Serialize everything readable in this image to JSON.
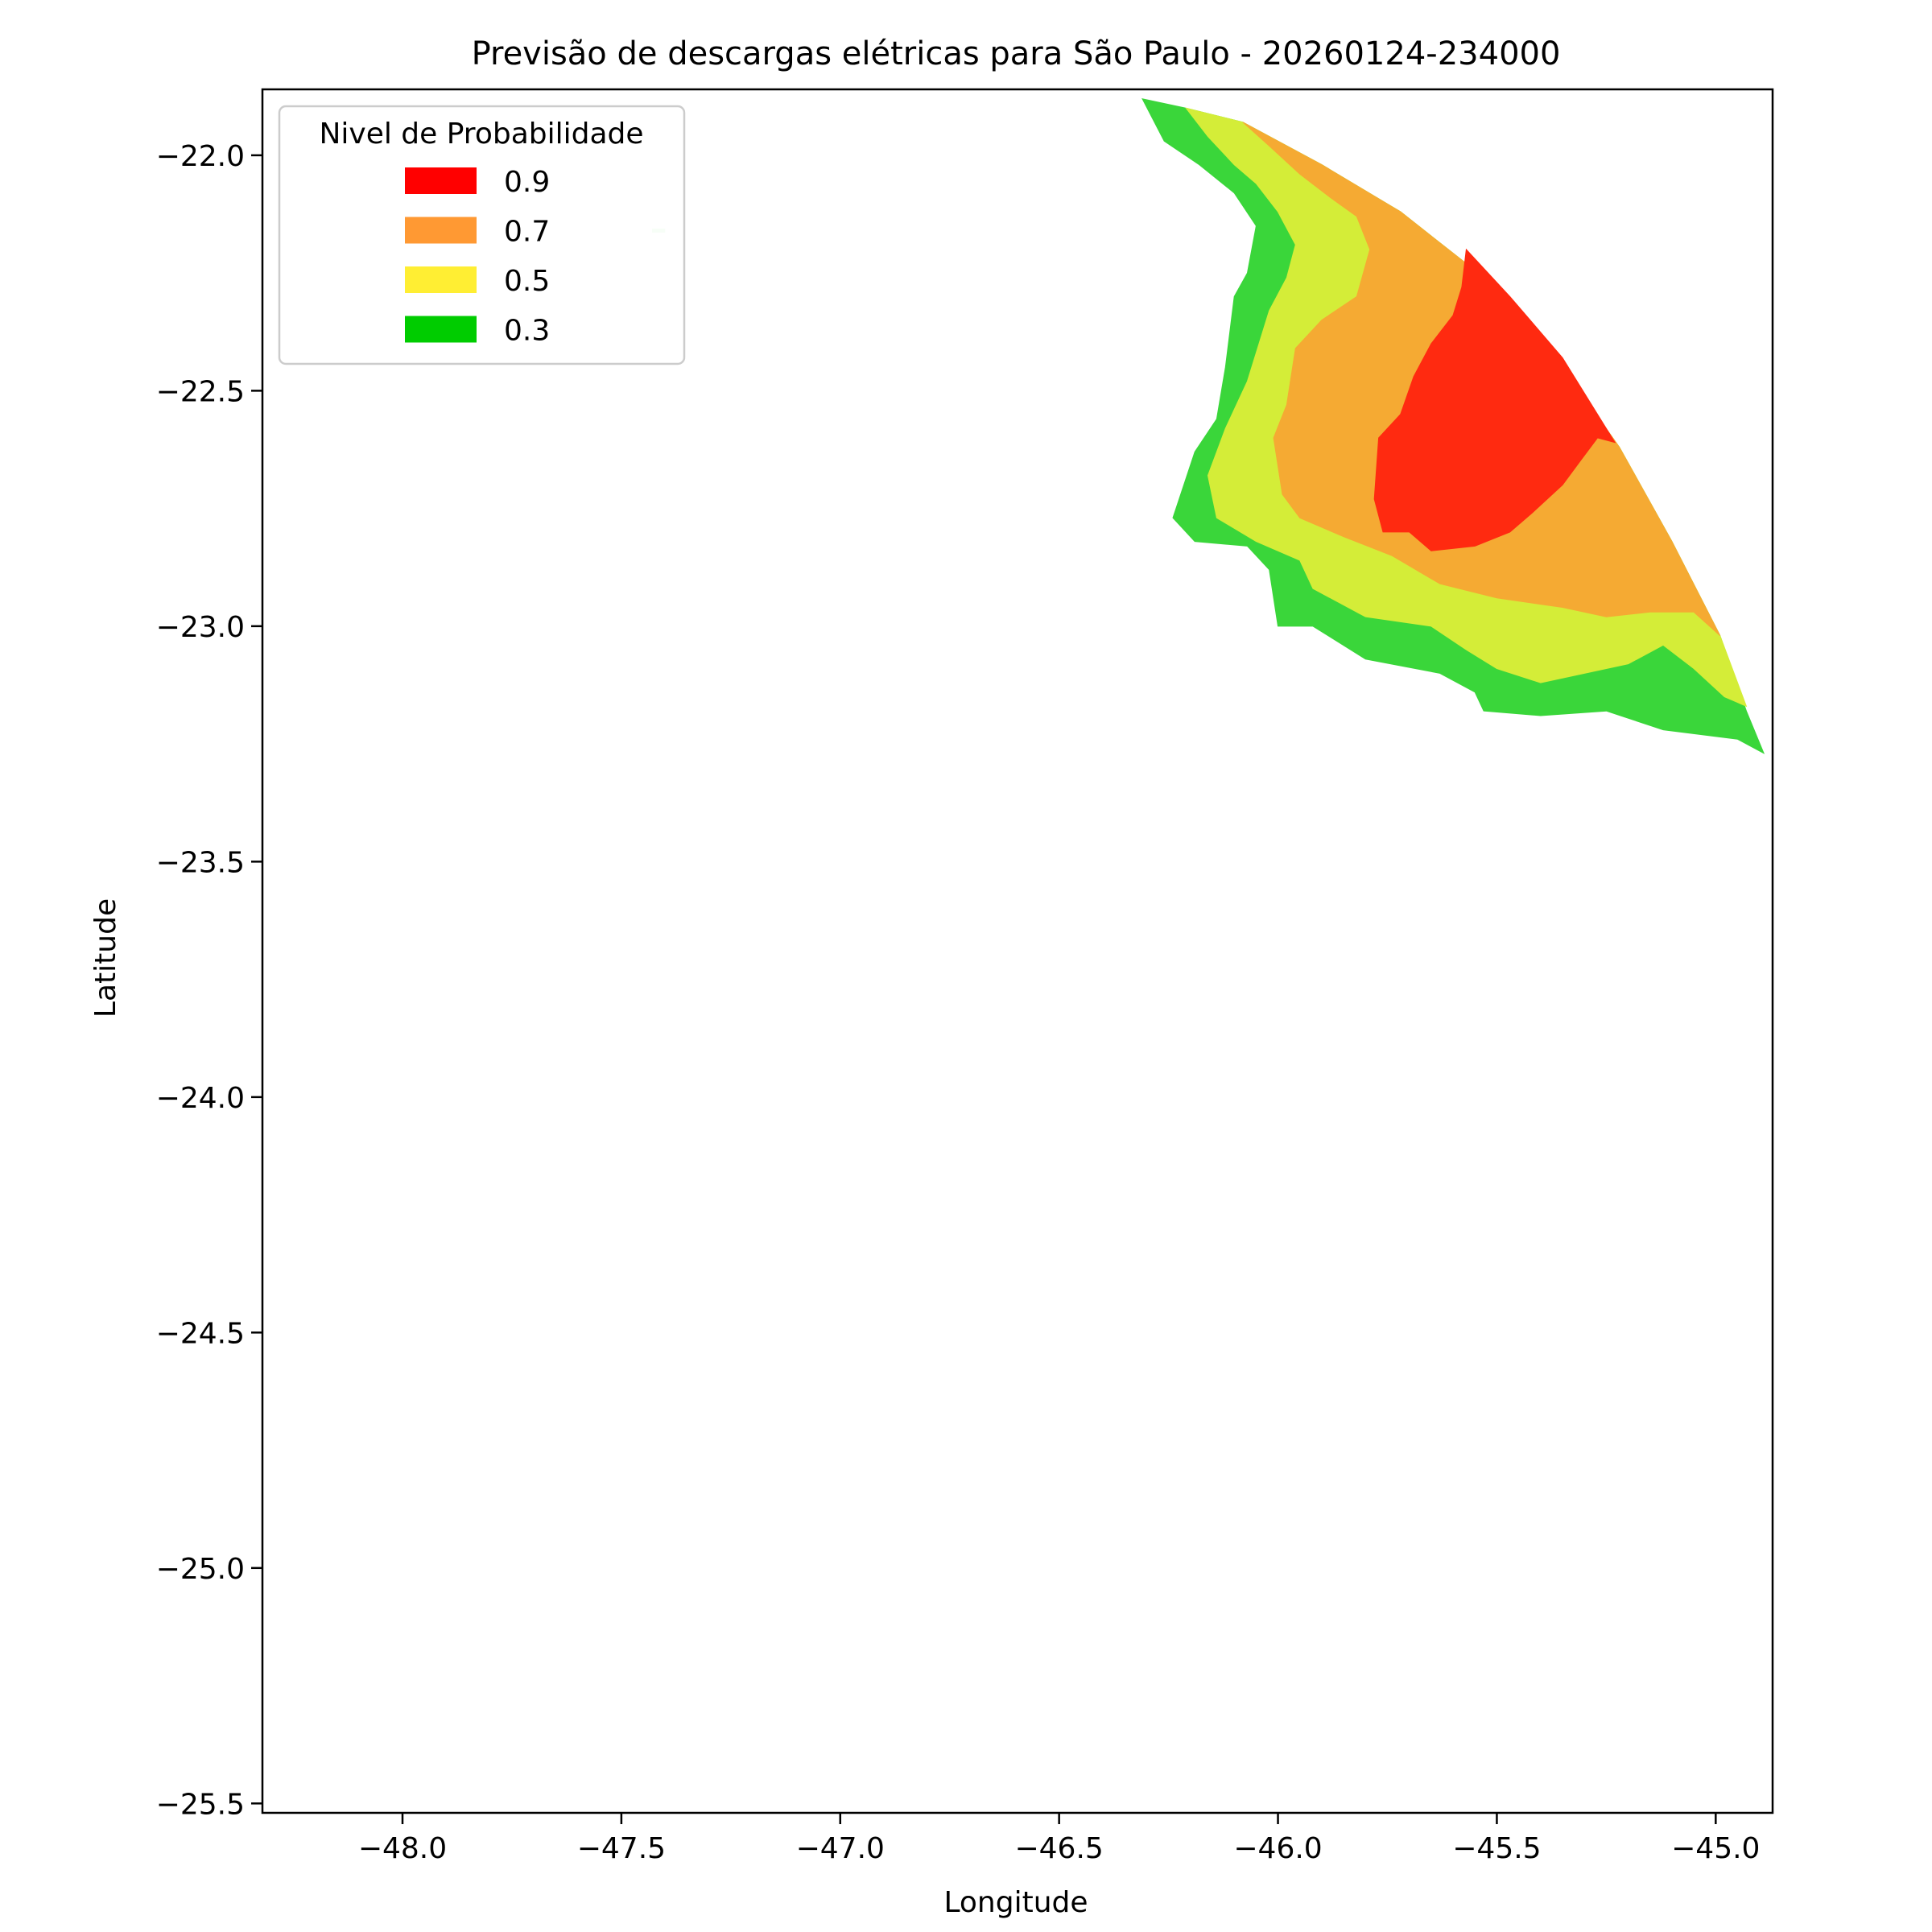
{
  "chart_data": {
    "type": "contour",
    "title": "Previsão de descargas elétricas para São Paulo - 20260124-234000",
    "xlabel": "Longitude",
    "ylabel": "Latitude",
    "xlim": [
      -48.32,
      -44.87
    ],
    "ylim": [
      -25.52,
      -21.86
    ],
    "xticks": [
      -48.0,
      -47.5,
      -47.0,
      -46.5,
      -46.0,
      -45.5,
      -45.0
    ],
    "xtick_labels": [
      "−48.0",
      "−47.5",
      "−47.0",
      "−46.5",
      "−46.0",
      "−45.5",
      "−45.0"
    ],
    "yticks": [
      -22.0,
      -22.5,
      -23.0,
      -23.5,
      -24.0,
      -24.5,
      -25.0,
      -25.5
    ],
    "ytick_labels": [
      "−22.0",
      "−22.5",
      "−23.0",
      "−23.5",
      "−24.0",
      "−24.5",
      "−25.0",
      "−25.5"
    ],
    "legend": {
      "title": "Nivel de Probabilidade",
      "position": "upper-left",
      "entries": [
        {
          "label": "0.9",
          "color": "#ff0000"
        },
        {
          "label": "0.7",
          "color": "#ff9933"
        },
        {
          "label": "0.5",
          "color": "#ffee33"
        },
        {
          "label": "0.3",
          "color": "#00cc00"
        }
      ]
    },
    "regions": [
      {
        "level": "0.3",
        "color": "#3ad63a",
        "points": [
          [
            -46.31,
            -21.88
          ],
          [
            -46.21,
            -21.9
          ],
          [
            -46.08,
            -21.93
          ],
          [
            -45.9,
            -22.02
          ],
          [
            -45.72,
            -22.12
          ],
          [
            -45.57,
            -22.23
          ],
          [
            -45.47,
            -22.32
          ],
          [
            -45.35,
            -22.45
          ],
          [
            -45.22,
            -22.62
          ],
          [
            -45.1,
            -22.82
          ],
          [
            -44.99,
            -23.02
          ],
          [
            -44.93,
            -23.18
          ],
          [
            -44.89,
            -23.27
          ],
          [
            -44.95,
            -23.24
          ],
          [
            -45.12,
            -23.22
          ],
          [
            -45.25,
            -23.18
          ],
          [
            -45.4,
            -23.19
          ],
          [
            -45.53,
            -23.18
          ],
          [
            -45.55,
            -23.14
          ],
          [
            -45.63,
            -23.1
          ],
          [
            -45.8,
            -23.07
          ],
          [
            -45.92,
            -23.0
          ],
          [
            -46.0,
            -23.0
          ],
          [
            -46.02,
            -22.88
          ],
          [
            -46.07,
            -22.83
          ],
          [
            -46.19,
            -22.82
          ],
          [
            -46.24,
            -22.77
          ],
          [
            -46.19,
            -22.63
          ],
          [
            -46.14,
            -22.56
          ],
          [
            -46.12,
            -22.45
          ],
          [
            -46.1,
            -22.3
          ],
          [
            -46.07,
            -22.25
          ],
          [
            -46.05,
            -22.15
          ],
          [
            -46.1,
            -22.08
          ],
          [
            -46.18,
            -22.02
          ],
          [
            -46.26,
            -21.97
          ]
        ]
      },
      {
        "level": "0.5",
        "color": "#d4ed38",
        "points": [
          [
            -46.21,
            -21.9
          ],
          [
            -46.08,
            -21.93
          ],
          [
            -45.9,
            -22.02
          ],
          [
            -45.72,
            -22.12
          ],
          [
            -45.57,
            -22.23
          ],
          [
            -45.47,
            -22.32
          ],
          [
            -45.35,
            -22.45
          ],
          [
            -45.22,
            -22.62
          ],
          [
            -45.1,
            -22.82
          ],
          [
            -44.99,
            -23.02
          ],
          [
            -44.93,
            -23.17
          ],
          [
            -44.98,
            -23.15
          ],
          [
            -45.05,
            -23.09
          ],
          [
            -45.12,
            -23.04
          ],
          [
            -45.2,
            -23.08
          ],
          [
            -45.3,
            -23.1
          ],
          [
            -45.4,
            -23.12
          ],
          [
            -45.5,
            -23.09
          ],
          [
            -45.57,
            -23.05
          ],
          [
            -45.65,
            -23.0
          ],
          [
            -45.8,
            -22.98
          ],
          [
            -45.92,
            -22.92
          ],
          [
            -45.95,
            -22.86
          ],
          [
            -46.05,
            -22.82
          ],
          [
            -46.14,
            -22.77
          ],
          [
            -46.16,
            -22.68
          ],
          [
            -46.12,
            -22.58
          ],
          [
            -46.07,
            -22.48
          ],
          [
            -46.02,
            -22.33
          ],
          [
            -45.98,
            -22.26
          ],
          [
            -45.96,
            -22.19
          ],
          [
            -46.0,
            -22.12
          ],
          [
            -46.05,
            -22.06
          ],
          [
            -46.1,
            -22.02
          ],
          [
            -46.16,
            -21.96
          ]
        ]
      },
      {
        "level": "0.7",
        "color": "#f5aa33",
        "points": [
          [
            -46.08,
            -21.93
          ],
          [
            -45.9,
            -22.02
          ],
          [
            -45.72,
            -22.12
          ],
          [
            -45.57,
            -22.23
          ],
          [
            -45.47,
            -22.32
          ],
          [
            -45.35,
            -22.45
          ],
          [
            -45.22,
            -22.62
          ],
          [
            -45.1,
            -22.82
          ],
          [
            -44.99,
            -23.02
          ],
          [
            -45.05,
            -22.97
          ],
          [
            -45.15,
            -22.97
          ],
          [
            -45.25,
            -22.98
          ],
          [
            -45.35,
            -22.96
          ],
          [
            -45.5,
            -22.94
          ],
          [
            -45.63,
            -22.91
          ],
          [
            -45.74,
            -22.85
          ],
          [
            -45.85,
            -22.81
          ],
          [
            -45.95,
            -22.77
          ],
          [
            -45.99,
            -22.72
          ],
          [
            -46.01,
            -22.6
          ],
          [
            -45.98,
            -22.53
          ],
          [
            -45.96,
            -22.41
          ],
          [
            -45.9,
            -22.35
          ],
          [
            -45.82,
            -22.3
          ],
          [
            -45.79,
            -22.2
          ],
          [
            -45.82,
            -22.13
          ],
          [
            -45.88,
            -22.09
          ],
          [
            -45.95,
            -22.04
          ],
          [
            -46.02,
            -21.98
          ]
        ]
      },
      {
        "level": "0.9",
        "color": "#ff2a10",
        "points": [
          [
            -45.57,
            -22.2
          ],
          [
            -45.47,
            -22.3
          ],
          [
            -45.35,
            -22.43
          ],
          [
            -45.23,
            -22.61
          ],
          [
            -45.27,
            -22.6
          ],
          [
            -45.31,
            -22.65
          ],
          [
            -45.35,
            -22.7
          ],
          [
            -45.42,
            -22.76
          ],
          [
            -45.47,
            -22.8
          ],
          [
            -45.55,
            -22.83
          ],
          [
            -45.65,
            -22.84
          ],
          [
            -45.7,
            -22.8
          ],
          [
            -45.76,
            -22.8
          ],
          [
            -45.78,
            -22.73
          ],
          [
            -45.77,
            -22.6
          ],
          [
            -45.72,
            -22.55
          ],
          [
            -45.69,
            -22.47
          ],
          [
            -45.65,
            -22.4
          ],
          [
            -45.6,
            -22.34
          ],
          [
            -45.58,
            -22.28
          ]
        ]
      }
    ],
    "stray_marks": [
      {
        "level": "0.3",
        "color": "#c6f5c6",
        "x": [
          -47.43,
          -47.4
        ],
        "y": -22.16
      }
    ]
  }
}
